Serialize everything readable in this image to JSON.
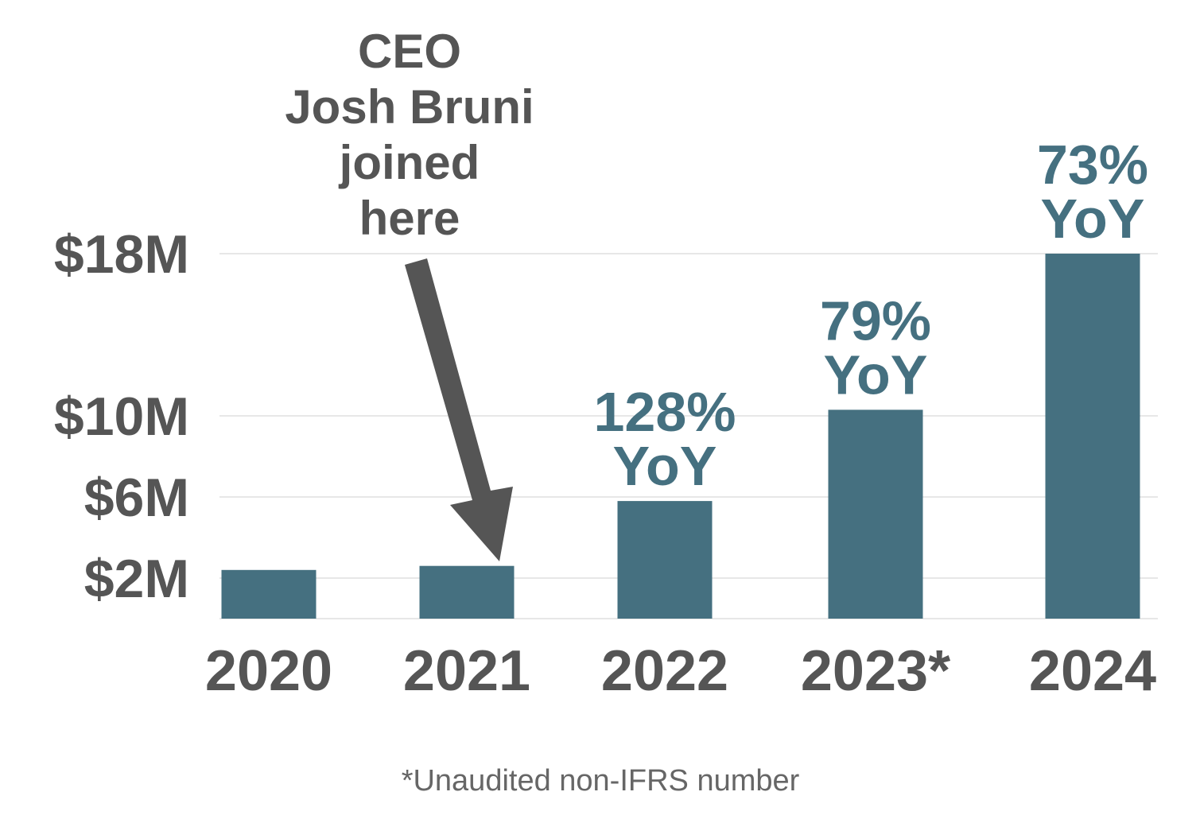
{
  "chart_data": {
    "type": "bar",
    "categories": [
      "2020",
      "2021",
      "2022",
      "2023*",
      "2024"
    ],
    "values": [
      2.4,
      2.6,
      5.8,
      10.3,
      18
    ],
    "y_ticks": [
      {
        "value": 2,
        "label": "$2M"
      },
      {
        "value": 6,
        "label": "$6M"
      },
      {
        "value": 10,
        "label": "$10M"
      },
      {
        "value": 18,
        "label": "$18M"
      }
    ],
    "ylim": [
      0,
      18
    ],
    "grid": true,
    "annotations": [
      {
        "category": "2022",
        "lines": [
          "128%",
          "YoY"
        ]
      },
      {
        "category": "2023*",
        "lines": [
          "79%",
          "YoY"
        ]
      },
      {
        "category": "2024",
        "lines": [
          "73%",
          "YoY"
        ]
      }
    ],
    "callout": {
      "category": "2021",
      "lines": [
        "CEO",
        "Josh Bruni",
        "joined",
        "here"
      ]
    },
    "footnote": "*Unaudited non-IFRS number",
    "colors": {
      "bar": "#457080",
      "text": "#555555",
      "annotation": "#457080",
      "grid": "#cfcfcf"
    }
  }
}
